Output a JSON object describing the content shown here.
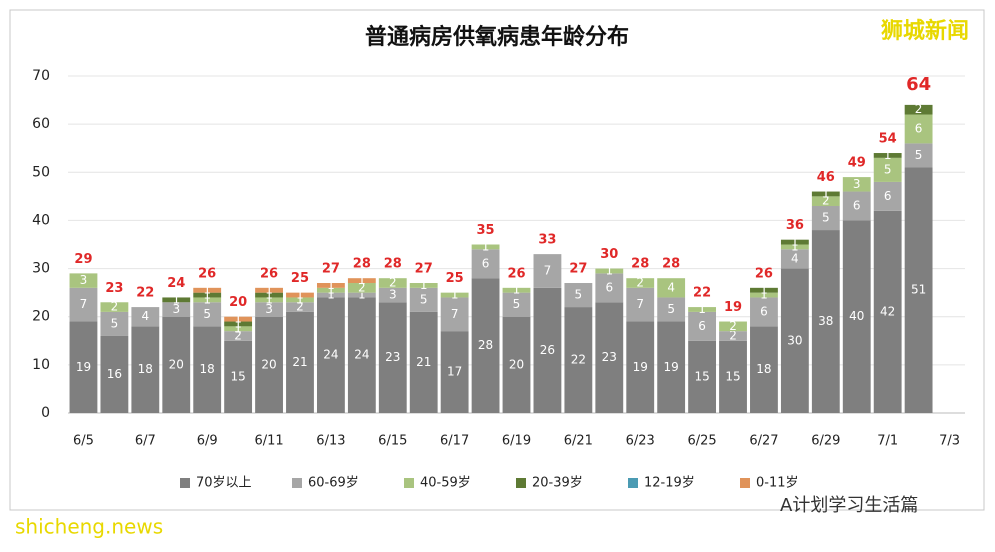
{
  "chart_data": {
    "type": "stacked_bar",
    "title": "普通病房供氧病患年龄分布",
    "watermark": "狮城新闻",
    "footer_left": "shicheng.news",
    "footer_right": "A计划学习生活篇",
    "categories": [
      "6/5",
      null,
      "6/7",
      null,
      "6/9",
      null,
      "6/11",
      null,
      "6/13",
      null,
      "6/15",
      null,
      "6/17",
      null,
      "6/19",
      null,
      "6/21",
      null,
      "6/23",
      null,
      "6/25",
      null,
      "6/27",
      null,
      "6/29",
      null,
      "7/1",
      null,
      "7/3"
    ],
    "series": [
      {
        "name": "70岁以上",
        "color": "#7f7f7f",
        "values": [
          19,
          16,
          18,
          20,
          18,
          15,
          20,
          21,
          24,
          24,
          23,
          21,
          17,
          28,
          20,
          26,
          22,
          23,
          19,
          19,
          15,
          15,
          18,
          30,
          38,
          40,
          42,
          51,
          null
        ]
      },
      {
        "name": "60-69岁",
        "color": "#a6a6a6",
        "values": [
          7,
          5,
          4,
          3,
          5,
          2,
          3,
          2,
          1,
          1,
          3,
          5,
          7,
          6,
          5,
          7,
          5,
          6,
          7,
          5,
          6,
          2,
          6,
          4,
          5,
          6,
          6,
          5,
          null
        ]
      },
      {
        "name": "40-59岁",
        "color": "#a9c47f",
        "values": [
          3,
          2,
          0,
          0,
          1,
          1,
          1,
          1,
          1,
          2,
          2,
          1,
          1,
          1,
          1,
          0,
          0,
          1,
          2,
          4,
          1,
          2,
          1,
          1,
          2,
          3,
          5,
          6,
          null
        ]
      },
      {
        "name": "20-39岁",
        "color": "#5e7a34",
        "values": [
          0,
          0,
          0,
          1,
          1,
          1,
          1,
          0,
          0,
          0,
          0,
          0,
          0,
          0,
          0,
          0,
          0,
          0,
          0,
          0,
          0,
          0,
          1,
          1,
          1,
          0,
          1,
          2,
          null
        ]
      },
      {
        "name": "12-19岁",
        "color": "#4b9bb3",
        "values": [
          0,
          0,
          0,
          0,
          0,
          0,
          0,
          0,
          0,
          0,
          0,
          0,
          0,
          0,
          0,
          0,
          0,
          0,
          0,
          0,
          0,
          0,
          0,
          0,
          0,
          0,
          0,
          0,
          null
        ]
      },
      {
        "name": "0-11岁",
        "color": "#e0935a",
        "values": [
          0,
          0,
          0,
          0,
          1,
          1,
          1,
          1,
          1,
          1,
          0,
          0,
          0,
          0,
          0,
          0,
          0,
          0,
          0,
          0,
          0,
          0,
          0,
          0,
          0,
          0,
          0,
          0,
          null
        ]
      }
    ],
    "totals": [
      29,
      23,
      22,
      24,
      26,
      20,
      26,
      25,
      27,
      28,
      28,
      27,
      25,
      35,
      26,
      33,
      27,
      30,
      28,
      28,
      22,
      19,
      26,
      36,
      46,
      49,
      54,
      64,
      null
    ],
    "ylim": [
      0,
      70
    ],
    "yticks": [
      0,
      10,
      20,
      30,
      40,
      50,
      60,
      70
    ],
    "grid": true,
    "legend": "bottom"
  }
}
